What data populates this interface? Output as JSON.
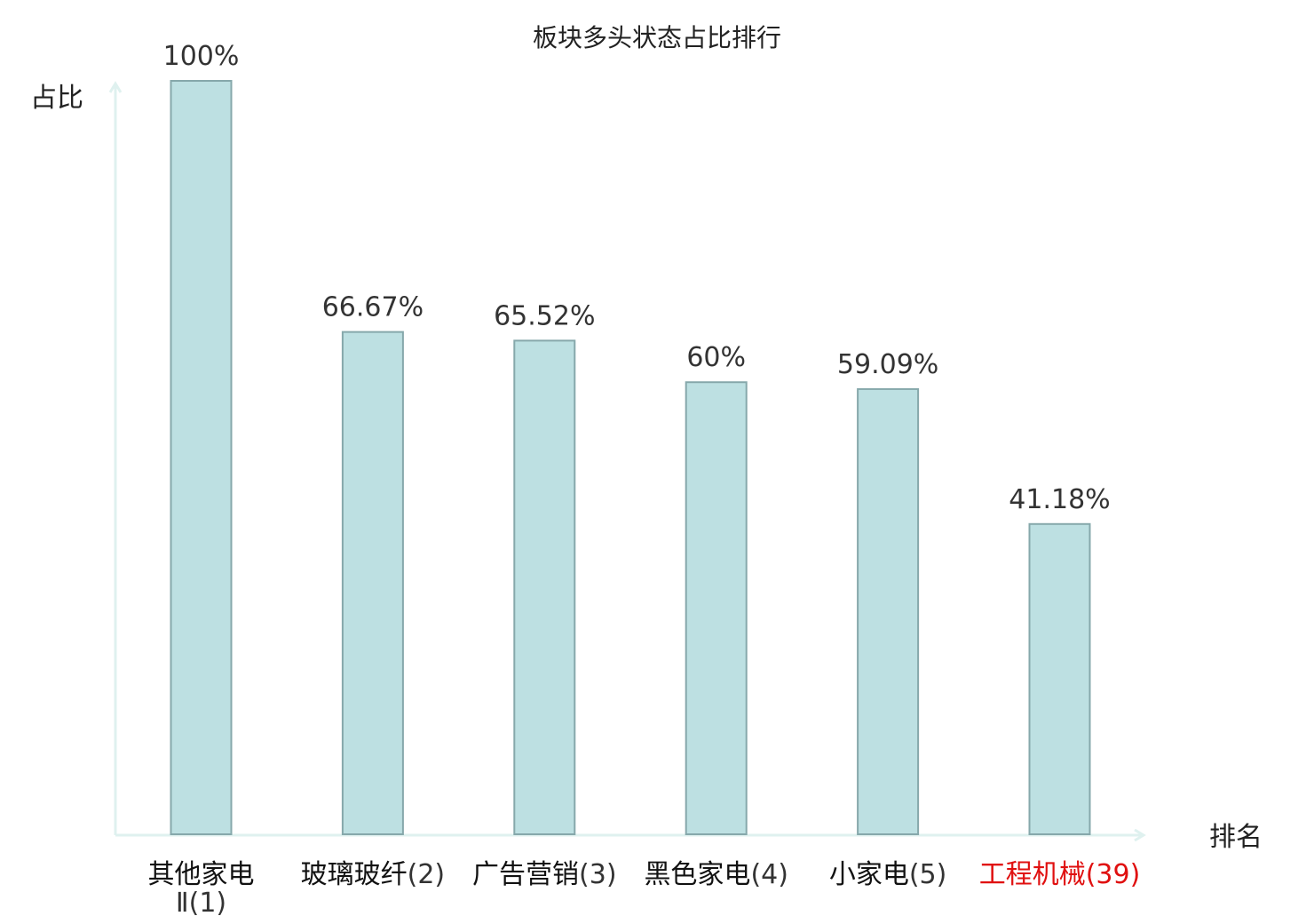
{
  "chart_data": {
    "type": "bar",
    "title": "板块多头状态占比排行",
    "xlabel": "排名",
    "ylabel": "占比",
    "ylim": [
      0,
      100
    ],
    "categories": [
      {
        "name": "其他家电",
        "name_line2": "Ⅱ",
        "rank": "(1)",
        "highlight": false
      },
      {
        "name": "玻璃玻纤",
        "name_line2": "",
        "rank": "(2)",
        "highlight": false
      },
      {
        "name": "广告营销",
        "name_line2": "",
        "rank": "(3)",
        "highlight": false
      },
      {
        "name": "黑色家电",
        "name_line2": "",
        "rank": "(4)",
        "highlight": false
      },
      {
        "name": "小家电",
        "name_line2": "",
        "rank": "(5)",
        "highlight": false
      },
      {
        "name": "工程机械",
        "name_line2": "",
        "rank": "(39)",
        "highlight": true
      }
    ],
    "values": [
      100,
      66.67,
      65.52,
      60,
      59.09,
      41.18
    ],
    "value_labels": [
      "100%",
      "66.67%",
      "65.52%",
      "60%",
      "59.09%",
      "41.18%"
    ],
    "grid": false,
    "legend": "none"
  },
  "colors": {
    "bar_fill": "#bde0e2",
    "bar_stroke": "#86a8ab",
    "axis": "#dff1ef",
    "highlight": "#e01010",
    "text": "#222222"
  }
}
